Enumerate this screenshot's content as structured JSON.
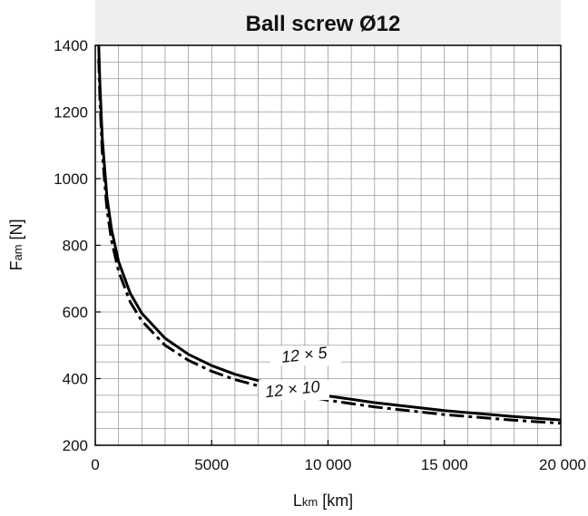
{
  "chart_data": {
    "type": "line",
    "title": "Ball screw Ø12",
    "xlabel": {
      "main": "L",
      "sub": "km",
      "unit": "[km]"
    },
    "ylabel": {
      "main": "F",
      "sub": "am",
      "unit": "[N]"
    },
    "xlim": [
      0,
      20000
    ],
    "ylim": [
      200,
      1400
    ],
    "x_ticks": [
      0,
      5000,
      10000,
      15000,
      20000
    ],
    "x_tick_labels": [
      "0",
      "5000",
      "10 000",
      "15 000",
      "20 000"
    ],
    "y_ticks": [
      200,
      400,
      600,
      800,
      1000,
      1200,
      1400
    ],
    "y_tick_labels": [
      "200",
      "400",
      "600",
      "800",
      "1000",
      "1200",
      "1400"
    ],
    "grid": true,
    "series": [
      {
        "name": "12 × 5",
        "style": "solid",
        "x": [
          150,
          200,
          300,
          500,
          700,
          1000,
          1500,
          2000,
          3000,
          4000,
          5000,
          6000,
          8000,
          10000,
          12000,
          15000,
          18000,
          20000
        ],
        "y": [
          1400,
          1285,
          1122,
          946,
          846,
          751,
          656,
          596,
          521,
          473,
          439,
          413,
          375,
          348,
          328,
          304,
          286,
          276
        ]
      },
      {
        "name": "12 × 10",
        "style": "dashdot",
        "x": [
          150,
          200,
          300,
          500,
          700,
          1000,
          1500,
          2000,
          3000,
          4000,
          5000,
          6000,
          8000,
          10000,
          12000,
          15000,
          18000,
          20000
        ],
        "y": [
          1360,
          1235,
          1078,
          909,
          813,
          722,
          630,
          573,
          500,
          455,
          422,
          397,
          360,
          335,
          315,
          292,
          275,
          266
        ]
      }
    ]
  }
}
